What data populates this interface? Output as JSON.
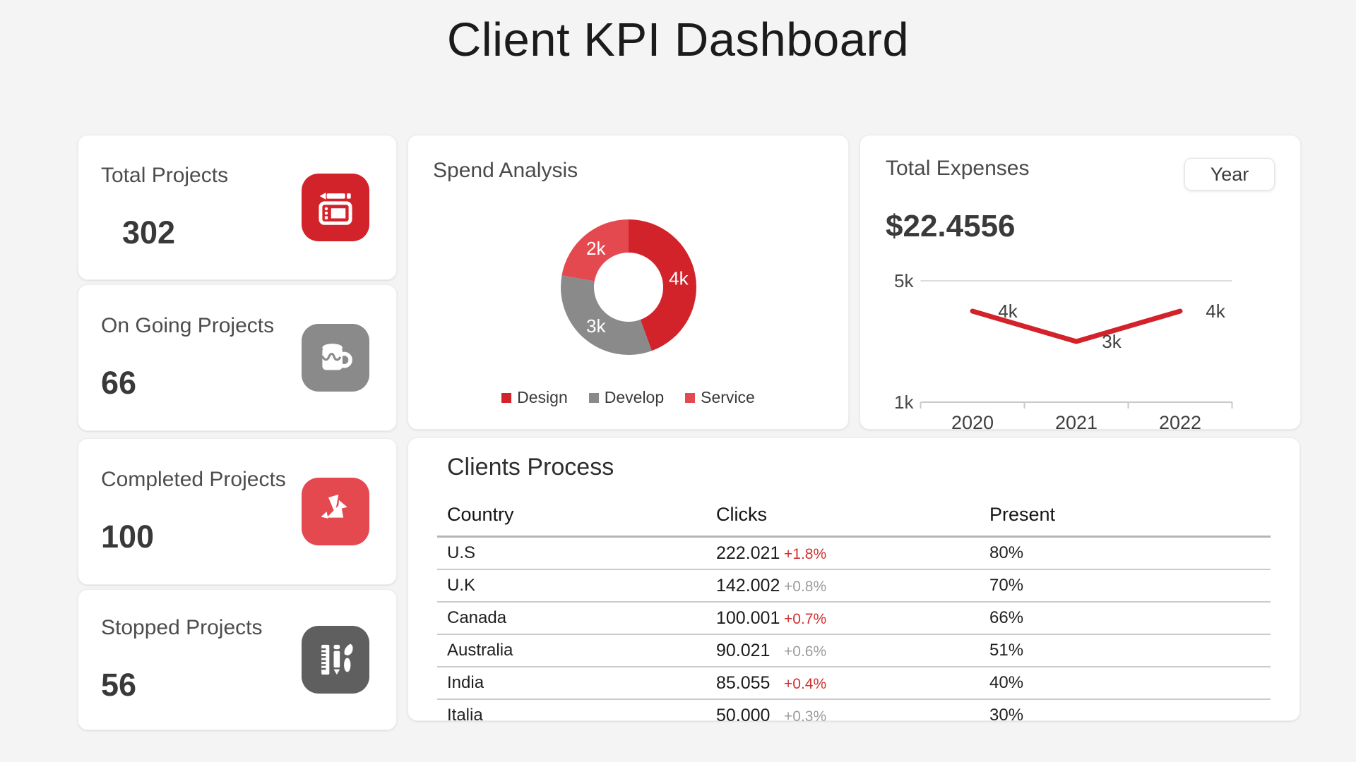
{
  "page": {
    "title": "Client KPI Dashboard",
    "background": "#f4f4f4"
  },
  "theme": {
    "red_primary": "#d2232b",
    "red_light": "#e4494f",
    "gray_medium": "#8a8a8a",
    "gray_dark": "#5f5f5f",
    "card": "#ffffff",
    "text_dark": "#3a3a3a",
    "positive_red": "#d23030",
    "muted_gray": "#9c9c9c",
    "divider": "#cbcbcb"
  },
  "stats": {
    "items": [
      {
        "label": "Total Projects",
        "value": "302",
        "icon": "graphics-tablet-icon",
        "icon_bg": "#d2232b"
      },
      {
        "label": "On Going Projects",
        "value": "66",
        "icon": "paint-mug-icon",
        "icon_bg": "#8a8a8a"
      },
      {
        "label": "Completed Projects",
        "value": "100",
        "icon": "origami-bird-icon",
        "icon_bg": "#e4494f"
      },
      {
        "label": "Stopped Projects",
        "value": "56",
        "icon": "design-tools-icon",
        "icon_bg": "#5f5f5f"
      }
    ]
  },
  "spend_analysis": {
    "title": "Spend Analysis",
    "legend": [
      {
        "label": "Design",
        "color": "#d2232b"
      },
      {
        "label": "Develop",
        "color": "#8a8a8a"
      },
      {
        "label": "Service",
        "color": "#e4494f"
      }
    ]
  },
  "total_expenses": {
    "title": "Total Expenses",
    "amount": "$22.4556",
    "period_button": "Year"
  },
  "clients_process": {
    "title": "Clients Process",
    "columns": [
      "Country",
      "Clicks",
      "Present"
    ],
    "rows": [
      {
        "country": "U.S",
        "clicks": "222.021",
        "change": "+1.8%",
        "change_tone": "red",
        "present": "80%"
      },
      {
        "country": "U.K",
        "clicks": "142.002",
        "change": "+0.8%",
        "change_tone": "gray",
        "present": "70%"
      },
      {
        "country": "Canada",
        "clicks": "100.001",
        "change": "+0.7%",
        "change_tone": "red",
        "present": "66%"
      },
      {
        "country": "Australia",
        "clicks": "90.021",
        "change": "+0.6%",
        "change_tone": "gray",
        "present": "51%"
      },
      {
        "country": "India",
        "clicks": "85.055",
        "change": "+0.4%",
        "change_tone": "red",
        "present": "40%"
      },
      {
        "country": "Italia",
        "clicks": "50.000",
        "change": "+0.3%",
        "change_tone": "gray",
        "present": "30%"
      }
    ]
  },
  "chart_data": [
    {
      "type": "pie",
      "subtype": "donut",
      "title": "Spend Analysis",
      "categories": [
        "Design",
        "Develop",
        "Service"
      ],
      "values": [
        4000,
        3000,
        2000
      ],
      "labels": [
        "4k",
        "3k",
        "2k"
      ],
      "colors": [
        "#d2232b",
        "#8a8a8a",
        "#e4494f"
      ],
      "start_angle": "top",
      "direction": "clockwise",
      "legend_position": "bottom"
    },
    {
      "type": "line",
      "title": "Total Expenses",
      "x": [
        "2020",
        "2021",
        "2022"
      ],
      "values": [
        4000,
        3000,
        4000
      ],
      "point_labels": [
        "4k",
        "3k",
        "4k"
      ],
      "ylim": [
        1000,
        5000
      ],
      "yticks": [
        "5k",
        "1k"
      ],
      "line_color": "#d2232b",
      "grid": "top gridline and bottom axis only"
    }
  ]
}
